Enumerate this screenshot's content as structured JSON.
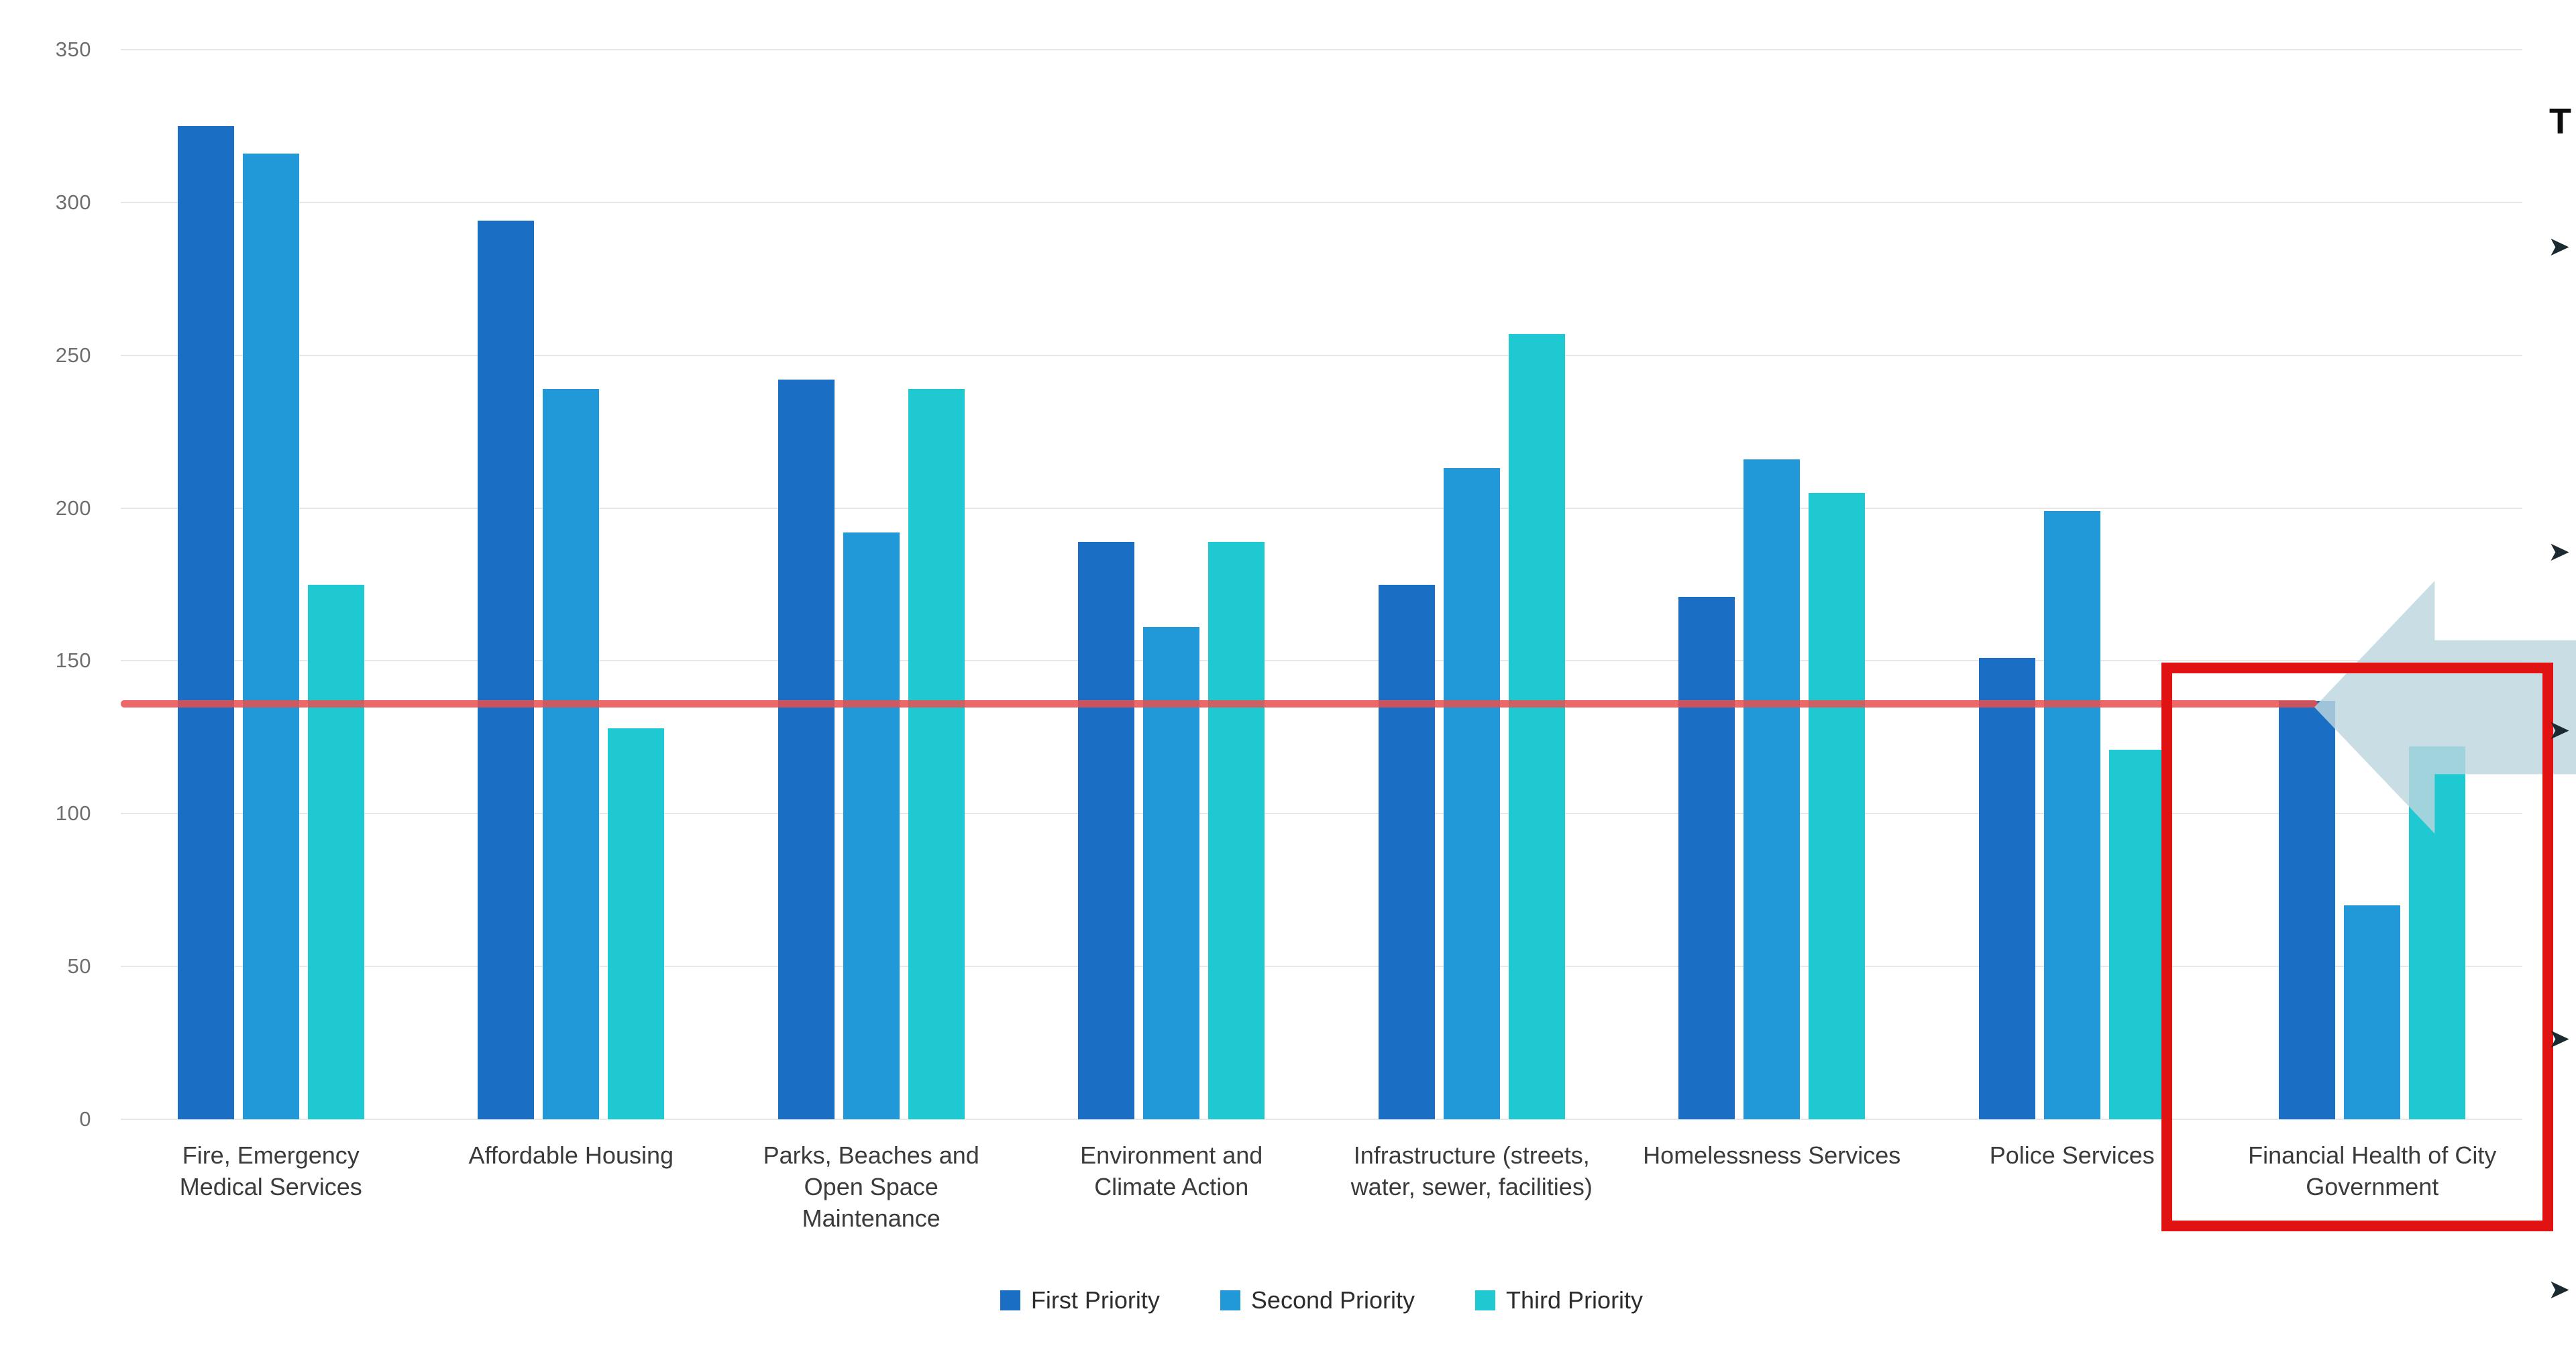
{
  "chart_data": {
    "type": "bar",
    "title": "",
    "categories": [
      "Fire, Emergency Medical Services",
      "Affordable Housing",
      "Parks, Beaches and Open Space Maintenance",
      "Environment and Climate Action",
      "Infrastructure (streets, water, sewer, facilities)",
      "Homelessness Services",
      "Police Services",
      "Financial Health of City Government"
    ],
    "series": [
      {
        "name": "First Priority",
        "color": "#1a6ec4",
        "values": [
          325,
          294,
          242,
          189,
          175,
          171,
          151,
          137
        ]
      },
      {
        "name": "Second Priority",
        "color": "#2199d8",
        "values": [
          316,
          239,
          192,
          161,
          213,
          216,
          199,
          70
        ]
      },
      {
        "name": "Third Priority",
        "color": "#1ec9d2",
        "values": [
          175,
          128,
          239,
          189,
          257,
          205,
          121,
          122
        ]
      }
    ],
    "xlabel": "",
    "ylabel": "",
    "ylim": [
      0,
      350
    ],
    "ytick_step": 50,
    "grid": true,
    "legend_position": "bottom",
    "reference_line": {
      "value": 136,
      "color": "#ea4f4f"
    },
    "highlight": {
      "category": "Financial Health of City Government",
      "box_color": "#e01212"
    }
  },
  "side_panel": {
    "title_fragment": "T",
    "bullet_glyphs": [
      "➤",
      "➤",
      "➤",
      "➤",
      "➤"
    ]
  }
}
